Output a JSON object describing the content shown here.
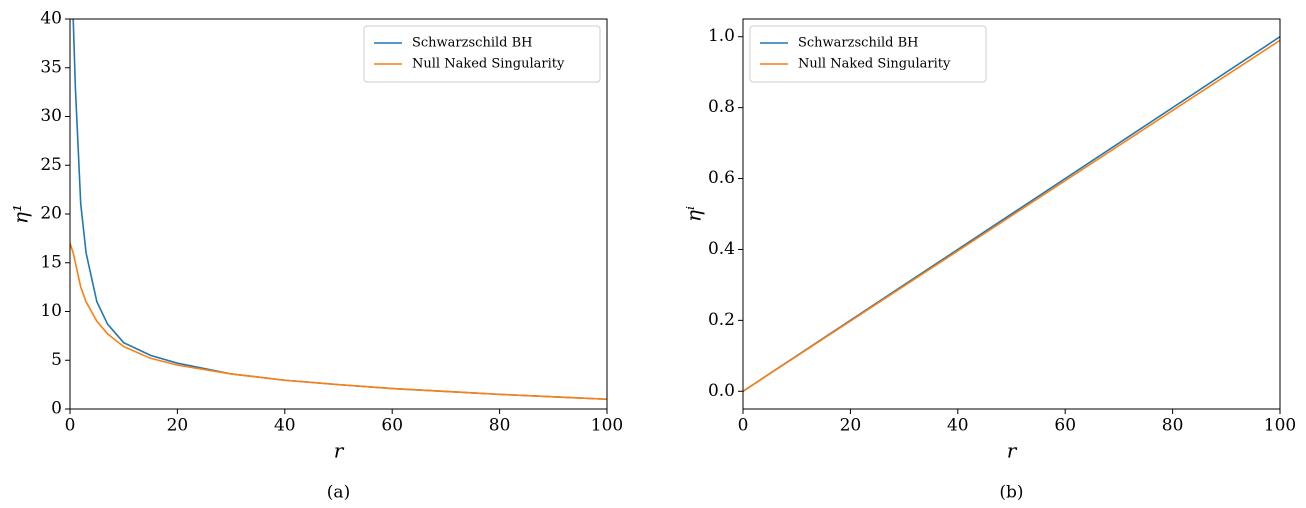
{
  "chart_data": [
    {
      "type": "line",
      "caption": "(a)",
      "xlabel": "r",
      "ylabel": "η¹",
      "x": [
        0,
        0.6,
        1,
        2,
        3,
        5,
        7,
        10,
        15,
        20,
        30,
        40,
        50,
        60,
        70,
        80,
        90,
        100
      ],
      "series": [
        {
          "name": "Schwarzschild BH",
          "color": "#1f77b4",
          "values": [
            null,
            40,
            33,
            21,
            16,
            11,
            8.7,
            6.8,
            5.5,
            4.7,
            3.6,
            2.95,
            2.5,
            2.1,
            1.8,
            1.5,
            1.25,
            1.0
          ]
        },
        {
          "name": "Null Naked Singularity",
          "color": "#ff7f0e",
          "values": [
            17,
            16,
            15,
            12.5,
            11,
            9,
            7.7,
            6.4,
            5.2,
            4.5,
            3.6,
            2.95,
            2.5,
            2.1,
            1.8,
            1.5,
            1.25,
            1.0
          ]
        }
      ],
      "xlim": [
        0,
        100
      ],
      "xticks": [
        0,
        20,
        40,
        60,
        80,
        100
      ],
      "ylim": [
        0,
        40
      ],
      "yticks": [
        0,
        5,
        10,
        15,
        20,
        25,
        30,
        35,
        40
      ],
      "legend": "upper right"
    },
    {
      "type": "line",
      "caption": "(b)",
      "xlabel": "r",
      "ylabel": "ηⁱ",
      "x": [
        0,
        100
      ],
      "series": [
        {
          "name": "Schwarzschild BH",
          "color": "#1f77b4",
          "values": [
            0,
            1.0
          ]
        },
        {
          "name": "Null Naked Singularity",
          "color": "#ff7f0e",
          "values": [
            0,
            0.99
          ]
        }
      ],
      "xlim": [
        0,
        100
      ],
      "xticks": [
        0,
        20,
        40,
        60,
        80,
        100
      ],
      "ylim": [
        -0.05,
        1.05
      ],
      "yticks": [
        {
          "value": 0,
          "label": "0.0"
        },
        0.2,
        0.4,
        0.6,
        0.8,
        {
          "value": 1,
          "label": "1.0"
        }
      ],
      "legend": "upper left"
    }
  ]
}
